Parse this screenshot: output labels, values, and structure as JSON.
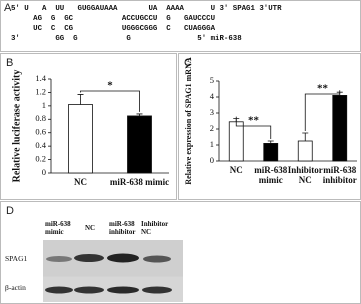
{
  "panel_a": {
    "letter": "A",
    "lines": [
      "5' U   A  UU   GUGGAUAAA       UA  AAAA      U 3' SPAG1 3'UTR",
      "     AG  G  GC           ACCUGCCU  G   GAUCCCU",
      "     UC  C  CG           UGGGCGGG  C   CUAGGGA",
      "3'        GG  G           G               5' miR-638"
    ]
  },
  "chart_data": [
    {
      "type": "bar",
      "letter": "B",
      "y_label": "Relative luciferase activity",
      "categories": [
        "NC",
        "miR-638 mimic"
      ],
      "values": [
        1.02,
        0.85
      ],
      "errors": [
        0.15,
        0.03
      ],
      "colors": [
        "#ffffff",
        "#000000"
      ],
      "ylim": [
        0,
        1.4
      ],
      "yticks": [
        0,
        0.2,
        0.4,
        0.6,
        0.8,
        1,
        1.2,
        1.4
      ],
      "significance": [
        "*"
      ]
    },
    {
      "type": "bar",
      "letter": "C",
      "y_label": "Relative expression of SPAG1 mRNA",
      "categories": [
        "NC",
        "miR-638 mimic",
        "Inhibitor NC",
        "miR-638 inhibitor"
      ],
      "values": [
        2.45,
        1.1,
        1.25,
        4.1
      ],
      "errors": [
        0.2,
        0.15,
        0.5,
        0.2
      ],
      "colors": [
        "#ffffff",
        "#000000",
        "#ffffff",
        "#000000"
      ],
      "ylim": [
        0,
        5
      ],
      "yticks": [
        0,
        1,
        2,
        3,
        4,
        5
      ],
      "significance": [
        "**",
        "**"
      ]
    }
  ],
  "panel_d": {
    "letter": "D",
    "lanes": [
      "miR-638 mimic",
      "NC",
      "miR-638 inhibitor",
      "Inhibitor NC"
    ],
    "rows": [
      "SPAG1",
      "β-actin"
    ]
  }
}
